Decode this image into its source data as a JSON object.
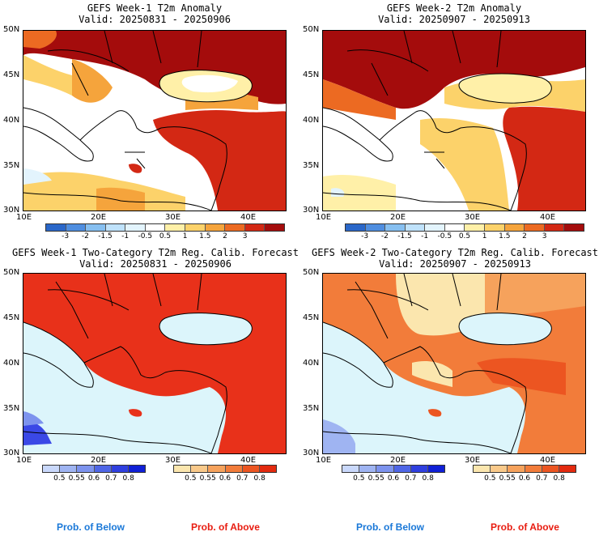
{
  "colors": {
    "dark_red": "#a40c0c",
    "red": "#e8311a",
    "orange_red": "#f06b22",
    "orange": "#f7a13a",
    "light_orange": "#fcd76f",
    "pale_yellow": "#fff3b0",
    "white": "#ffffff",
    "pale_blue": "#d6f0ff",
    "sea_prob": "#dcf5fb",
    "blue": "#3a48e6"
  },
  "panels": [
    {
      "title": "GEFS Week-1 T2m Anomaly",
      "valid": "Valid: 20250831 - 20250906"
    },
    {
      "title": "GEFS Week-2 T2m Anomaly",
      "valid": "Valid: 20250907 - 20250913"
    },
    {
      "title": "GEFS Week-1 Two-Category T2m Reg. Calib. Forecast",
      "valid": "Valid: 20250831 - 20250906"
    },
    {
      "title": "GEFS Week-2 Two-Category T2m Reg. Calib. Forecast",
      "valid": "Valid: 20250907 - 20250913"
    }
  ],
  "axes": {
    "lat_labels": [
      "50N",
      "45N",
      "40N",
      "35N",
      "30N"
    ],
    "lon_labels": [
      "10E",
      "20E",
      "30E",
      "40E"
    ]
  },
  "anomaly_colorbar": {
    "ticks": [
      "-3",
      "-2",
      "-1.5",
      "-1",
      "-0.5",
      "0.5",
      "1",
      "1.5",
      "2",
      "3"
    ],
    "colors": [
      "#2a67c9",
      "#4f8ee0",
      "#86bff0",
      "#bfe2fb",
      "#e3f4fd",
      "#ffffff",
      "#fff0a8",
      "#fcd26a",
      "#f5a43c",
      "#ec6a22",
      "#d32814",
      "#a40c0c"
    ]
  },
  "prob_below_colorbar": {
    "ticks": [
      "0.5",
      "0.55",
      "0.6",
      "0.7",
      "0.8"
    ],
    "colors": [
      "#c9d8fb",
      "#9fb4f2",
      "#7d93ee",
      "#4f66e6",
      "#2f3fdf",
      "#1020d6"
    ]
  },
  "prob_above_colorbar": {
    "ticks": [
      "0.5",
      "0.55",
      "0.6",
      "0.7",
      "0.8"
    ],
    "colors": [
      "#fbe6ae",
      "#f9c98a",
      "#f6a25c",
      "#f27c3a",
      "#ec5521",
      "#e32a0f"
    ]
  },
  "footer": {
    "below": "Prob. of Below",
    "above": "Prob. of Above",
    "below_color": "#1a78d8",
    "above_color": "#e81c10"
  }
}
